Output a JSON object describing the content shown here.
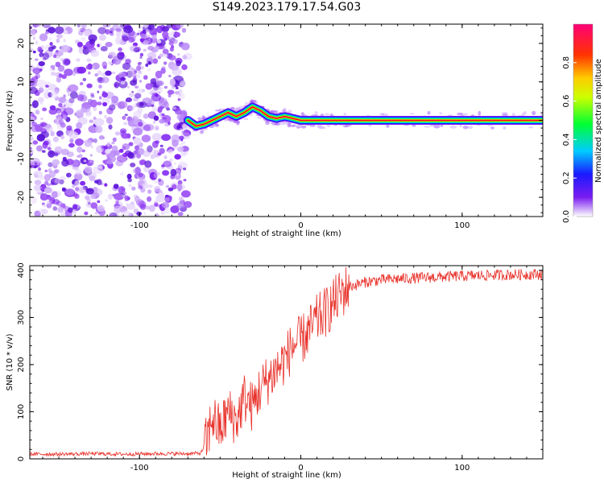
{
  "title": "S149.2023.179.17.54.G03",
  "colors": {
    "signal": "#e8312a",
    "noise": "#7a1cf0",
    "axis": "#000000"
  },
  "chart_data": [
    {
      "type": "heatmap",
      "xlabel": "Height of straight line (km)",
      "ylabel": "Frequency (Hz)",
      "xlim": [
        -168,
        150
      ],
      "ylim": [
        -25,
        25
      ],
      "x_ticks": [
        -100,
        0,
        100
      ],
      "y_ticks": [
        -20,
        -10,
        0,
        10,
        20
      ],
      "noise_region": {
        "x_range": [
          -168,
          -70
        ],
        "y_range": [
          -25,
          25
        ]
      },
      "signal_trace": {
        "x": [
          -70,
          -65,
          -60,
          -55,
          -50,
          -45,
          -40,
          -35,
          -30,
          -25,
          -20,
          -15,
          -10,
          -5,
          0,
          10,
          20,
          40,
          60,
          80,
          100,
          110,
          130,
          150
        ],
        "y": [
          0,
          -1.5,
          -1,
          0,
          1,
          2,
          1,
          2,
          3.5,
          2.5,
          1,
          0.5,
          1,
          0.5,
          0,
          0,
          0,
          0,
          0,
          0,
          0,
          0,
          0,
          0
        ]
      },
      "colorbar": {
        "label": "Normalized spectral amplitude",
        "range": [
          0,
          1
        ],
        "ticks": [
          0.0,
          0.2,
          0.4,
          0.6,
          0.8
        ]
      }
    },
    {
      "type": "line",
      "xlabel": "Height of straight line (km)",
      "ylabel": "SNR (10 * v/v)",
      "xlim": [
        -168,
        150
      ],
      "ylim": [
        0,
        410
      ],
      "x_ticks": [
        -100,
        0,
        100
      ],
      "y_ticks": [
        0,
        100,
        200,
        300,
        400
      ],
      "series": [
        {
          "x": [
            -168,
            -150,
            -130,
            -110,
            -90,
            -70,
            -62,
            -58,
            -55,
            -50,
            -45,
            -40,
            -35,
            -30,
            -25,
            -20,
            -15,
            -10,
            -5,
            0,
            5,
            10,
            15,
            20,
            25,
            30,
            40,
            50,
            60,
            80,
            100,
            120,
            150
          ],
          "values": [
            10,
            10,
            11,
            10,
            11,
            11,
            12,
            40,
            90,
            60,
            100,
            80,
            130,
            110,
            150,
            170,
            190,
            210,
            240,
            250,
            270,
            295,
            310,
            330,
            350,
            365,
            375,
            380,
            382,
            385,
            388,
            390,
            392
          ]
        }
      ]
    }
  ]
}
